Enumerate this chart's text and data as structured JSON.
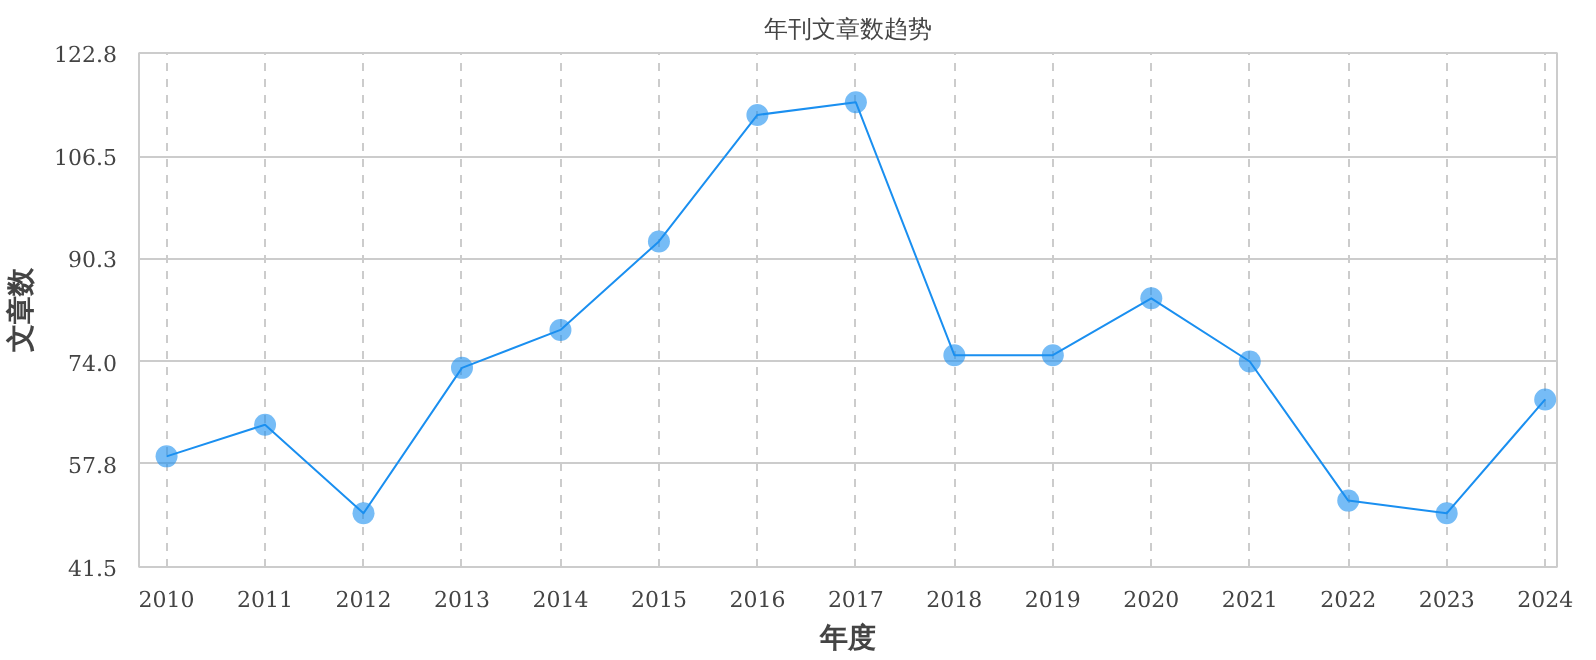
{
  "chart_data": {
    "type": "line",
    "title": "年刊文章数趋势",
    "xlabel": "年度",
    "ylabel": "文章数",
    "categories": [
      "2010",
      "2011",
      "2012",
      "2013",
      "2014",
      "2015",
      "2016",
      "2017",
      "2018",
      "2019",
      "2020",
      "2021",
      "2022",
      "2023",
      "2024"
    ],
    "series": [
      {
        "color": "#1a8ff0",
        "values": [
          59,
          64,
          50,
          73,
          79,
          93,
          113,
          115,
          75,
          75,
          84,
          74,
          52,
          50,
          68
        ]
      }
    ],
    "ylim": [
      41.5,
      122.8
    ],
    "yticks": [
      {
        "value": 41.5,
        "label": "41.5"
      },
      {
        "value": 57.8,
        "label": "57.8"
      },
      {
        "value": 74.0,
        "label": "74.0"
      },
      {
        "value": 90.3,
        "label": "90.3"
      },
      {
        "value": 106.5,
        "label": "106.5"
      },
      {
        "value": 122.8,
        "label": "122.8"
      }
    ],
    "grid": true,
    "marker": "circle",
    "line_style": "solid"
  }
}
